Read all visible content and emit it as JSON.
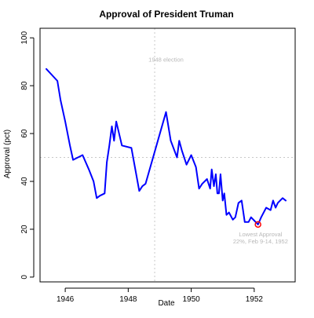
{
  "chart_data": {
    "type": "line",
    "title": "Approval of President Truman",
    "xlabel": "Date",
    "ylabel": "Approval (pct)",
    "xlim": [
      1945.2,
      1953.3
    ],
    "ylim": [
      -2,
      104
    ],
    "x_ticks": [
      1946,
      1948,
      1950,
      1952
    ],
    "x_tick_labels": [
      "1946",
      "1948",
      "1950",
      "1952"
    ],
    "y_ticks": [
      0,
      20,
      40,
      60,
      80,
      100
    ],
    "y_tick_labels": [
      "0",
      "20",
      "40",
      "60",
      "80",
      "100"
    ],
    "grid": false,
    "reference_lines": {
      "vertical_x": 1948.84,
      "horizontal_y": 50
    },
    "annotations": [
      {
        "name": "election-annotation",
        "lines": [
          "1948 election"
        ],
        "x": 1949.2,
        "y": 90
      },
      {
        "name": "lowest-approval-annotation",
        "lines": [
          "Lowest Approval",
          "22%, Feb 9-14, 1952"
        ],
        "x": 1952.2,
        "y": 17
      }
    ],
    "highlight_point": {
      "x": 1952.12,
      "y": 22
    },
    "series": [
      {
        "color": "#0000ff",
        "x": [
          1945.4,
          1945.75,
          1945.85,
          1946.0,
          1946.15,
          1946.25,
          1946.55,
          1946.75,
          1946.9,
          1947.0,
          1947.1,
          1947.25,
          1947.32,
          1947.4,
          1947.48,
          1947.55,
          1947.62,
          1947.8,
          1948.1,
          1948.35,
          1948.45,
          1948.55,
          1949.2,
          1949.35,
          1949.55,
          1949.62,
          1949.7,
          1949.85,
          1950.0,
          1950.15,
          1950.25,
          1950.35,
          1950.5,
          1950.6,
          1950.65,
          1950.72,
          1950.78,
          1950.83,
          1950.88,
          1950.93,
          1951.0,
          1951.05,
          1951.12,
          1951.2,
          1951.32,
          1951.4,
          1951.5,
          1951.6,
          1951.7,
          1951.82,
          1951.9,
          1952.12,
          1952.22,
          1952.38,
          1952.52,
          1952.6,
          1952.68,
          1952.75,
          1952.9,
          1953.0
        ],
        "y": [
          87,
          82,
          74,
          65,
          55,
          49,
          51,
          45,
          40,
          33,
          34,
          35,
          48,
          55,
          63,
          57,
          65,
          55,
          54,
          36,
          38,
          39,
          69,
          57,
          50,
          57,
          53,
          47,
          51,
          46,
          37,
          39,
          41,
          37,
          45,
          38,
          43,
          35,
          35,
          43,
          32,
          35,
          26,
          27,
          24,
          25,
          31,
          32,
          23,
          23,
          25,
          22,
          25,
          29,
          28,
          32,
          29,
          31,
          33,
          32
        ]
      }
    ]
  }
}
